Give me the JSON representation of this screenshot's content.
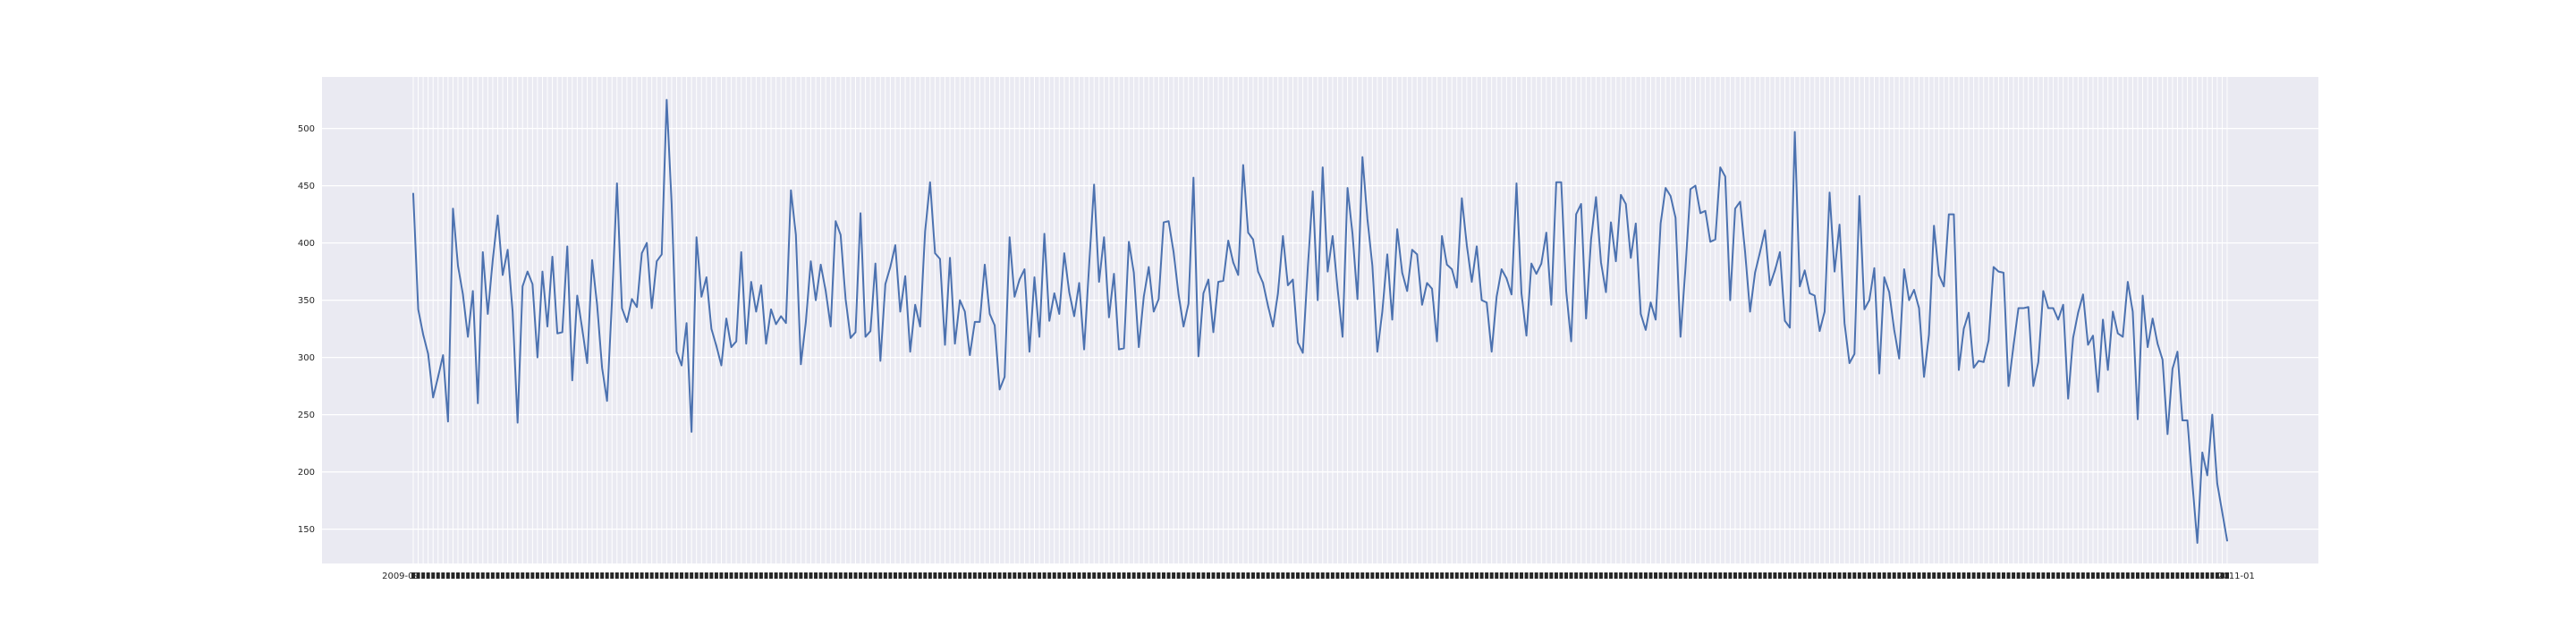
{
  "chart_data": {
    "type": "line",
    "title": "",
    "xlabel": "",
    "ylabel": "",
    "ylim": [
      120,
      545
    ],
    "yticks": [
      150,
      200,
      250,
      300,
      350,
      400,
      450,
      500
    ],
    "grid": true,
    "legend": "none",
    "colors": {
      "background": "#eaeaf2",
      "grid": "#ffffff",
      "line": "#4c72b0"
    },
    "x_first_label": "2009-09",
    "x_last_label": "2011-01",
    "series": [
      {
        "values": [
          443,
          342,
          320,
          303,
          265,
          283,
          302,
          244,
          430,
          380,
          355,
          318,
          358,
          260,
          392,
          338,
          385,
          424,
          372,
          394,
          340,
          243,
          362,
          375,
          364,
          300,
          375,
          327,
          388,
          321,
          322,
          397,
          280,
          354,
          325,
          295,
          385,
          346,
          291,
          262,
          350,
          452,
          343,
          331,
          351,
          344,
          391,
          400,
          343,
          384,
          390,
          525,
          434,
          305,
          293,
          330,
          235,
          405,
          353,
          370,
          325,
          310,
          293,
          334,
          309,
          314,
          392,
          312,
          366,
          340,
          363,
          312,
          342,
          329,
          336,
          330,
          446,
          407,
          294,
          331,
          384,
          350,
          381,
          358,
          327,
          419,
          407,
          351,
          317,
          322,
          426,
          318,
          323,
          382,
          297,
          364,
          379,
          398,
          340,
          371,
          305,
          346,
          327,
          410,
          453,
          391,
          386,
          311,
          387,
          312,
          350,
          340,
          302,
          331,
          331,
          381,
          338,
          328,
          272,
          283,
          405,
          353,
          368,
          377,
          305,
          370,
          318,
          408,
          332,
          356,
          338,
          391,
          357,
          336,
          365,
          307,
          380,
          451,
          366,
          405,
          335,
          373,
          307,
          308,
          401,
          374,
          309,
          353,
          379,
          340,
          351,
          418,
          419,
          392,
          355,
          327,
          347,
          457,
          301,
          356,
          368,
          322,
          366,
          367,
          402,
          383,
          372,
          468,
          409,
          403,
          375,
          365,
          345,
          327,
          356,
          406,
          363,
          368,
          313,
          304,
          378,
          445,
          350,
          466,
          375,
          406,
          360,
          318,
          448,
          408,
          351,
          475,
          421,
          380,
          305,
          340,
          390,
          333,
          412,
          374,
          358,
          394,
          390,
          346,
          365,
          360,
          314,
          406,
          381,
          377,
          361,
          439,
          398,
          366,
          397,
          350,
          348,
          305,
          353,
          377,
          369,
          355,
          452,
          356,
          319,
          382,
          373,
          382,
          409,
          346,
          453,
          453,
          358,
          314,
          425,
          434,
          334,
          403,
          440,
          383,
          357,
          418,
          384,
          442,
          434,
          387,
          417,
          338,
          324,
          348,
          333,
          417,
          448,
          441,
          422,
          318,
          378,
          447,
          450,
          426,
          428,
          401,
          403,
          466,
          458,
          350,
          430,
          436,
          392,
          340,
          374,
          392,
          411,
          363,
          376,
          392,
          332,
          326,
          497,
          362,
          376,
          356,
          354,
          323,
          340,
          444,
          375,
          416,
          330,
          295,
          303,
          441,
          342,
          350,
          378,
          286,
          370,
          357,
          324,
          299,
          377,
          350,
          359,
          343,
          283,
          320,
          415,
          372,
          362,
          425,
          425,
          289,
          325,
          339,
          291,
          297,
          296,
          315,
          379,
          375,
          374,
          275,
          310,
          343,
          343,
          344,
          275,
          296,
          358,
          343,
          343,
          333,
          346,
          264,
          317,
          339,
          355,
          311,
          319,
          270,
          333,
          289,
          340,
          321,
          318,
          366,
          340,
          246,
          354,
          309,
          334,
          312,
          298,
          233,
          290,
          305,
          245,
          245,
          190,
          138,
          217,
          197,
          250,
          190,
          165,
          140
        ]
      }
    ]
  }
}
